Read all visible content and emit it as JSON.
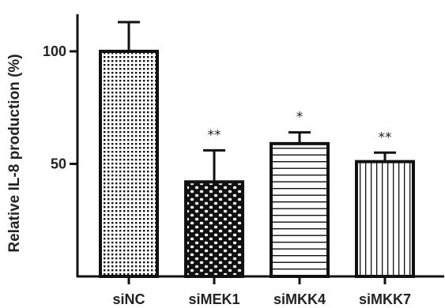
{
  "chart_data": {
    "type": "bar",
    "ylabel": "Relative IL-8 production (%)",
    "categories": [
      "siNC",
      "siMEK1",
      "siMKK4",
      "siMKK7"
    ],
    "values": [
      100,
      42,
      59,
      51
    ],
    "error_upper": [
      113,
      56,
      64,
      55
    ],
    "significance": [
      "",
      "**",
      "*",
      "**"
    ],
    "patterns": [
      "dots-dense",
      "checker-dots",
      "horizontal-lines",
      "vertical-lines"
    ],
    "yticks": [
      50,
      100
    ],
    "ylim": [
      0,
      120
    ],
    "grid": false,
    "legend": "none",
    "colors": {
      "bar_edge": "#111111",
      "fill": "#ffffff",
      "axis": "#111111"
    }
  }
}
